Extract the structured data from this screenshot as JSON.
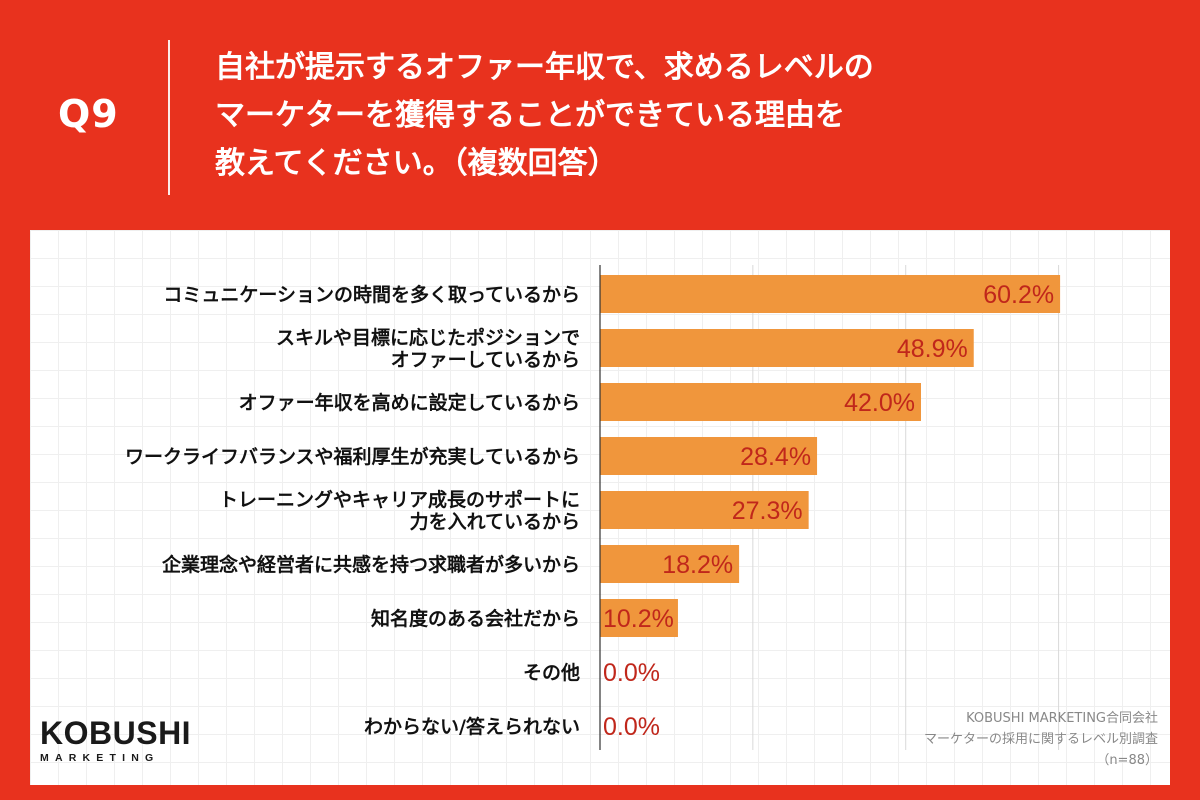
{
  "header": {
    "question_number": "Q9",
    "title_lines": [
      "自社が提示するオファー年収で、求めるレベルの",
      "マーケターを獲得することができている理由を",
      "教えてください。（複数回答）"
    ]
  },
  "colors": {
    "background": "#E8321E",
    "bar": "#F0963C",
    "value_text": "#C0271B",
    "panel": "#FFFFFF"
  },
  "chart_data": {
    "type": "bar",
    "orientation": "horizontal",
    "categories": [
      "コミュニケーションの時間を多く取っているから",
      "スキルや目標に応じたポジションで\nオファーしているから",
      "オファー年収を高めに設定しているから",
      "ワークライフバランスや福利厚生が充実しているから",
      "トレーニングやキャリア成長のサポートに\n力を入れているから",
      "企業理念や経営者に共感を持つ求職者が多いから",
      "知名度のある会社だから",
      "その他",
      "わからない/答えられない"
    ],
    "values": [
      60.2,
      48.9,
      42.0,
      28.4,
      27.3,
      18.2,
      10.2,
      0.0,
      0.0
    ],
    "value_labels": [
      "60.2%",
      "48.9%",
      "42.0%",
      "28.4%",
      "27.3%",
      "18.2%",
      "10.2%",
      "0.0%",
      "0.0%"
    ],
    "xlim": [
      0,
      70
    ],
    "grid": true,
    "unit": "%"
  },
  "logo": {
    "main": "KOBUSHI",
    "sub": "MARKETING"
  },
  "credit": {
    "line1": "KOBUSHI MARKETING合同会社",
    "line2": "マーケターの採用に関するレベル別調査",
    "line3": "（n=88）"
  }
}
